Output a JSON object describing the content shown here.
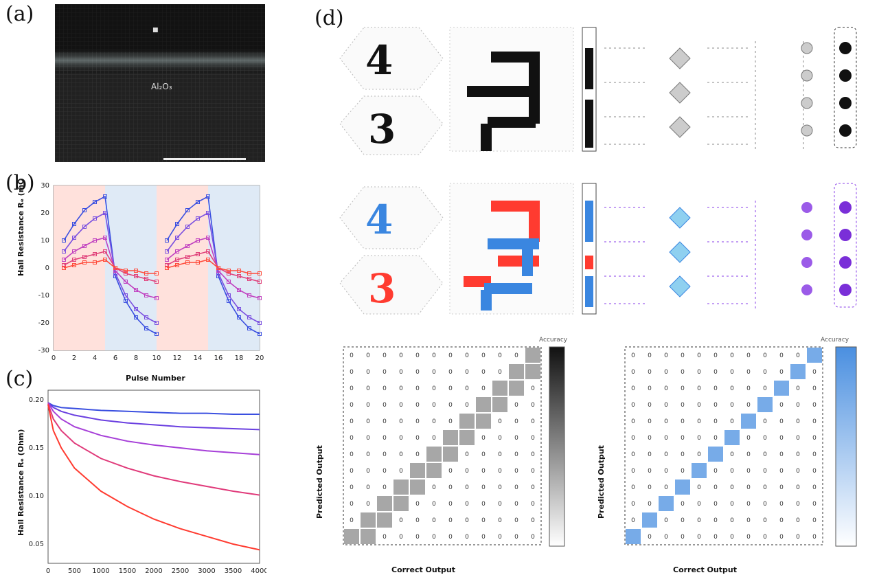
{
  "panels": {
    "a": {
      "label": "(a)",
      "texts": [
        "Al₂O₃"
      ]
    },
    "b": {
      "label": "(b)",
      "xlabel": "Pulse Number",
      "ylabel": "Hall Resistance Rₑ (mOhm)",
      "xticks": [
        "0",
        "2",
        "4",
        "6",
        "8",
        "10",
        "12",
        "14",
        "16",
        "18",
        "20"
      ],
      "yticks": [
        "30",
        "20",
        "10",
        "0",
        "-10",
        "-20",
        "-30"
      ]
    },
    "c": {
      "label": "(c)",
      "ylabel": "Hall Resistance Rₑ (Ohm)",
      "xticks": [
        "0",
        "500",
        "1000",
        "1500",
        "2000",
        "2500",
        "3000",
        "3500",
        "4000"
      ],
      "yticks": [
        "0.20",
        "0.15",
        "0.10",
        "0.05"
      ]
    },
    "d": {
      "label": "(d)",
      "input_digits": [
        "4",
        "3"
      ],
      "cm_left": {
        "xlabel": "Correct Output",
        "ylabel": "Predicted Output",
        "cbar_title": "Accuracy"
      },
      "cm_right": {
        "xlabel": "Correct Output",
        "ylabel": "Predicted Output",
        "cbar_title": "Accuracy"
      }
    }
  },
  "colors": {
    "blue": "#3a4fe0",
    "violet": "#8a3fe8",
    "magenta": "#d63aa8",
    "pink": "#e8327a",
    "red": "#ff3b30",
    "cm_blue": "#4a8fe0"
  },
  "chart_data": [
    {
      "type": "line",
      "panel": "b",
      "xlabel": "Pulse Number",
      "ylabel": "Hall Resistance Rₑ (mOhm)",
      "xlim": [
        0,
        20
      ],
      "ylim": [
        -30,
        30
      ],
      "x": [
        1,
        2,
        3,
        4,
        5,
        6,
        7,
        8,
        9,
        10,
        11,
        12,
        13,
        14,
        15,
        16,
        17,
        18,
        19,
        20
      ],
      "series": [
        {
          "color": "#3a4fe0",
          "values": [
            10,
            16,
            21,
            24,
            26,
            -3,
            -12,
            -18,
            -22,
            -24,
            10,
            16,
            21,
            24,
            26,
            -3,
            -12,
            -18,
            -22,
            -24
          ]
        },
        {
          "color": "#7a4fe0",
          "values": [
            6,
            11,
            15,
            18,
            20,
            -2,
            -10,
            -15,
            -18,
            -20,
            6,
            11,
            15,
            18,
            20,
            -2,
            -10,
            -15,
            -18,
            -20
          ]
        },
        {
          "color": "#c040c0",
          "values": [
            3,
            6,
            8,
            10,
            11,
            -1,
            -5,
            -8,
            -10,
            -11,
            3,
            6,
            8,
            10,
            11,
            -1,
            -5,
            -8,
            -10,
            -11
          ]
        },
        {
          "color": "#e0407a",
          "values": [
            1,
            3,
            4,
            5,
            6,
            0,
            -2,
            -3,
            -4,
            -5,
            1,
            3,
            4,
            5,
            6,
            0,
            -2,
            -3,
            -4,
            -5
          ]
        },
        {
          "color": "#ff4a3a",
          "values": [
            0,
            1,
            2,
            2,
            3,
            0,
            -1,
            -1,
            -2,
            -2,
            0,
            1,
            2,
            2,
            3,
            0,
            -1,
            -1,
            -2,
            -2
          ]
        }
      ]
    },
    {
      "type": "line",
      "panel": "c",
      "ylabel": "Hall Resistance Rₑ (Ohm)",
      "xlim": [
        0,
        4000
      ],
      "ylim": [
        0.03,
        0.21
      ],
      "x": [
        0,
        100,
        250,
        500,
        1000,
        1500,
        2000,
        2500,
        3000,
        3500,
        4000
      ],
      "series": [
        {
          "color": "#3a4fe0",
          "values": [
            0.197,
            0.194,
            0.192,
            0.191,
            0.189,
            0.188,
            0.187,
            0.186,
            0.186,
            0.185,
            0.185
          ]
        },
        {
          "color": "#6a3fe0",
          "values": [
            0.197,
            0.192,
            0.188,
            0.184,
            0.179,
            0.176,
            0.174,
            0.172,
            0.171,
            0.17,
            0.169
          ]
        },
        {
          "color": "#a63fd8",
          "values": [
            0.197,
            0.188,
            0.18,
            0.172,
            0.163,
            0.157,
            0.153,
            0.15,
            0.147,
            0.145,
            0.143
          ]
        },
        {
          "color": "#e03a7a",
          "values": [
            0.196,
            0.18,
            0.168,
            0.155,
            0.139,
            0.129,
            0.121,
            0.115,
            0.11,
            0.105,
            0.101
          ]
        },
        {
          "color": "#ff3b30",
          "values": [
            0.195,
            0.168,
            0.15,
            0.129,
            0.105,
            0.089,
            0.076,
            0.066,
            0.058,
            0.05,
            0.044
          ]
        }
      ]
    }
  ]
}
